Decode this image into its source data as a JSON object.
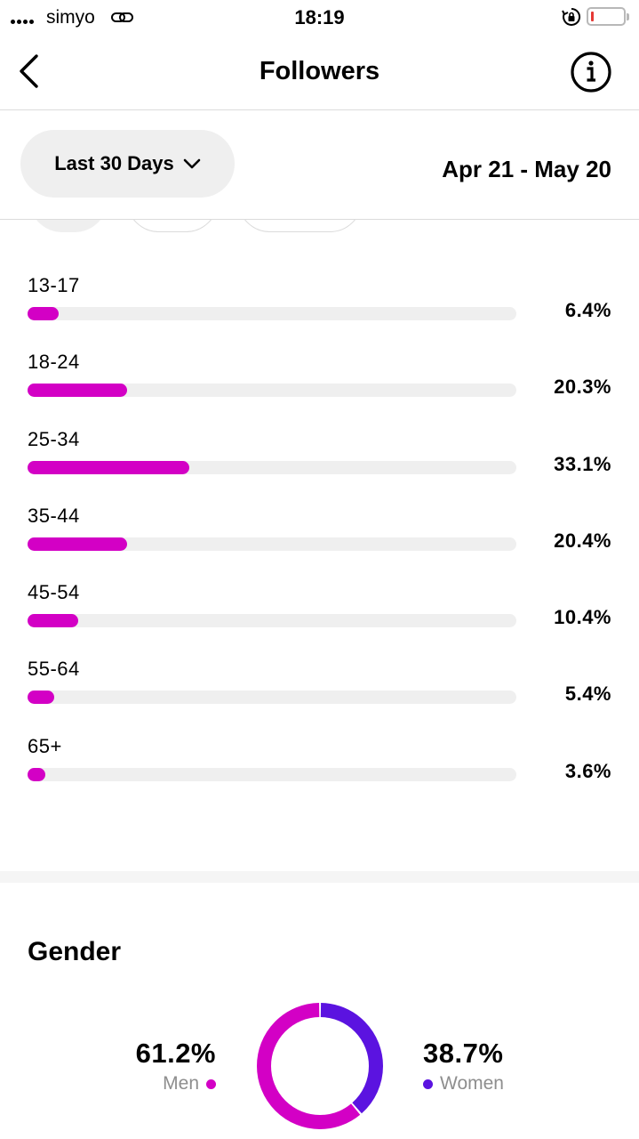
{
  "status_bar": {
    "carrier": "simyo",
    "time": "18:19"
  },
  "nav": {
    "title": "Followers"
  },
  "filter": {
    "range_label": "Last 30 Days",
    "date_range": "Apr 21 - May 20"
  },
  "age_groups": [
    {
      "label": "13-17",
      "value": "6.4%",
      "percent": 6.4
    },
    {
      "label": "18-24",
      "value": "20.3%",
      "percent": 20.3
    },
    {
      "label": "25-34",
      "value": "33.1%",
      "percent": 33.1
    },
    {
      "label": "35-44",
      "value": "20.4%",
      "percent": 20.4
    },
    {
      "label": "45-54",
      "value": "10.4%",
      "percent": 10.4
    },
    {
      "label": "55-64",
      "value": "5.4%",
      "percent": 5.4
    },
    {
      "label": "65+",
      "value": "3.6%",
      "percent": 3.6
    }
  ],
  "gender": {
    "title": "Gender",
    "men": {
      "label": "Men",
      "value": "61.2%",
      "percent": 61.2
    },
    "women": {
      "label": "Women",
      "value": "38.7%",
      "percent": 38.7
    }
  },
  "colors": {
    "accent_magenta": "#d300c5",
    "accent_purple": "#5b13e0",
    "track": "#efefef"
  },
  "icons": {
    "back": "chevron-left-icon",
    "info": "info-icon",
    "dropdown": "chevron-down-icon",
    "link": "link-icon",
    "lock": "orientation-lock-icon",
    "battery": "battery-icon",
    "signal": "signal-icon"
  }
}
